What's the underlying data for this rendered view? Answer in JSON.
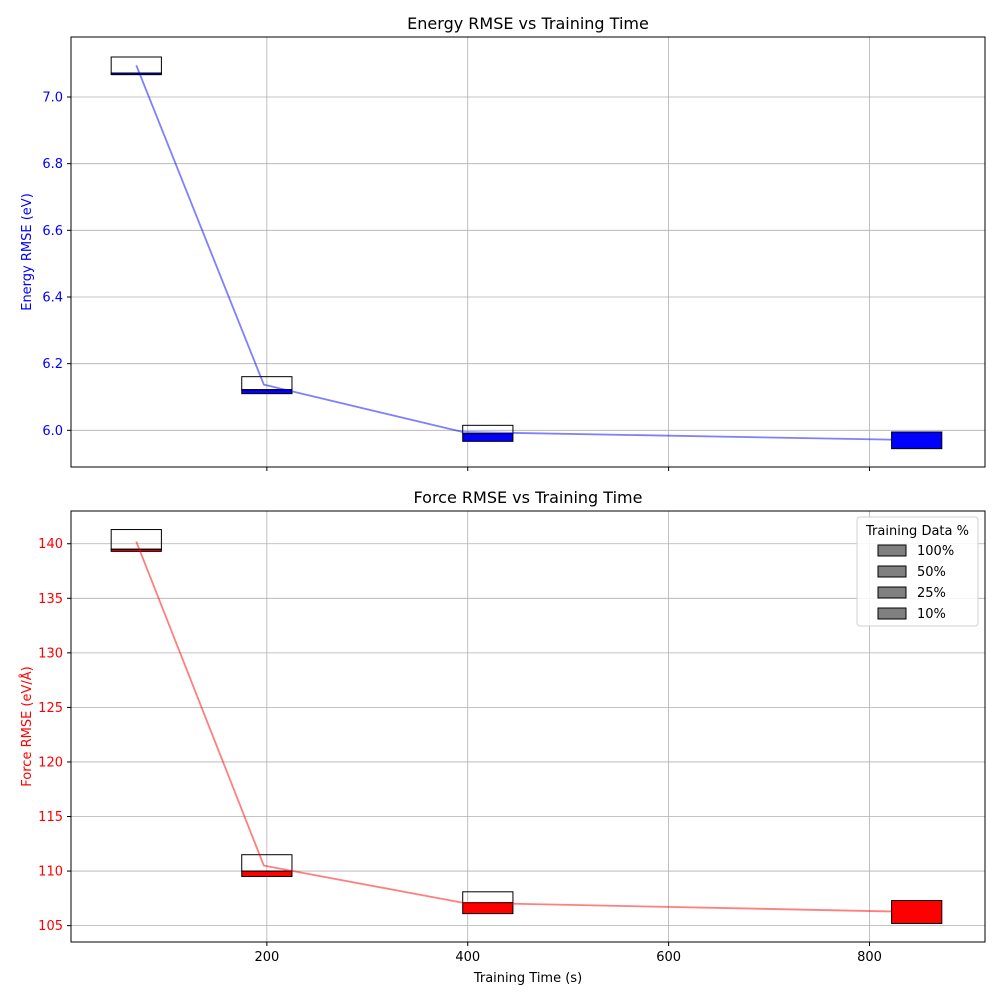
{
  "chart_data": [
    {
      "type": "line",
      "title": "Energy RMSE vs Training Time",
      "xlabel": "",
      "ylabel": "Energy RMSE (eV)",
      "ylabel_color": "#0000ff",
      "xlim": [
        5,
        915
      ],
      "ylim": [
        5.89,
        7.18
      ],
      "xticks": [
        200,
        400,
        600,
        800
      ],
      "yticks": [
        6.0,
        6.2,
        6.4,
        6.6,
        6.8,
        7.0
      ],
      "ytick_labels": [
        "6.0",
        "6.2",
        "6.4",
        "6.6",
        "6.8",
        "7.0"
      ],
      "grid": true,
      "line": {
        "color": "#0000ff",
        "x": [
          70,
          197,
          395,
          822
        ],
        "y": [
          7.095,
          6.137,
          5.995,
          5.972
        ]
      },
      "series": [
        {
          "name": "100%",
          "x": 822,
          "width": 50,
          "bottom": 5.945,
          "top": 5.995,
          "color": "#0000ff"
        },
        {
          "name": "50%",
          "x": 395,
          "width": 50,
          "bottom": 5.967,
          "top": 5.99,
          "color": "#0000ff"
        },
        {
          "name": "25%",
          "x": 175,
          "width": 50,
          "bottom": 6.11,
          "top": 6.122,
          "color": "#0000ff"
        },
        {
          "name": "10%",
          "x": 45,
          "width": 50,
          "bottom": 7.067,
          "top": 7.072,
          "color": "#0000ff"
        }
      ],
      "outline_boxes": [
        {
          "x": 395,
          "width": 50,
          "bottom": 5.99,
          "top": 6.015
        },
        {
          "x": 175,
          "width": 50,
          "bottom": 6.122,
          "top": 6.161
        },
        {
          "x": 45,
          "width": 50,
          "bottom": 7.072,
          "top": 7.12
        }
      ]
    },
    {
      "type": "line",
      "title": "Force RMSE vs Training Time",
      "xlabel": "Training Time (s)",
      "ylabel": "Force RMSE (eV/Å)",
      "ylabel_color": "#ff0000",
      "xlim": [
        5,
        915
      ],
      "ylim": [
        103.5,
        143.0
      ],
      "xticks": [
        200,
        400,
        600,
        800
      ],
      "xtick_labels": [
        "200",
        "400",
        "600",
        "800"
      ],
      "yticks": [
        105,
        110,
        115,
        120,
        125,
        130,
        135,
        140
      ],
      "ytick_labels": [
        "105",
        "110",
        "115",
        "120",
        "125",
        "130",
        "135",
        "140"
      ],
      "grid": true,
      "line": {
        "color": "#ff0000",
        "x": [
          70,
          197,
          395,
          822
        ],
        "y": [
          140.2,
          110.5,
          107.1,
          106.3
        ]
      },
      "series": [
        {
          "name": "100%",
          "x": 822,
          "width": 50,
          "bottom": 105.2,
          "top": 107.3,
          "color": "#ff0000"
        },
        {
          "name": "50%",
          "x": 395,
          "width": 50,
          "bottom": 106.1,
          "top": 107.1,
          "color": "#ff0000"
        },
        {
          "name": "25%",
          "x": 175,
          "width": 50,
          "bottom": 109.5,
          "top": 110.0,
          "color": "#ff0000"
        },
        {
          "name": "10%",
          "x": 45,
          "width": 50,
          "bottom": 139.3,
          "top": 139.5,
          "color": "#ff0000"
        }
      ],
      "outline_boxes": [
        {
          "x": 395,
          "width": 50,
          "bottom": 107.1,
          "top": 108.1
        },
        {
          "x": 175,
          "width": 50,
          "bottom": 110.0,
          "top": 111.5
        },
        {
          "x": 45,
          "width": 50,
          "bottom": 139.5,
          "top": 141.3
        }
      ],
      "legend": {
        "title": "Training Data %",
        "placement": "top-right",
        "swatch_color": "#808080",
        "entries": [
          "100%",
          "50%",
          "25%",
          "10%"
        ]
      }
    }
  ]
}
